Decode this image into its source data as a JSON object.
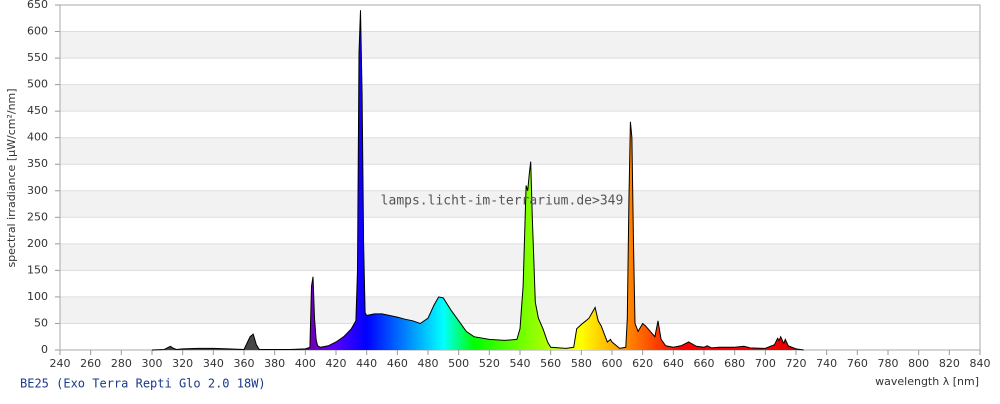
{
  "chart_data": {
    "type": "area",
    "title": "BE25 (Exo Terra Repti Glo 2.0 18W)",
    "watermark": "lamps.licht-im-terrarium.de>349",
    "x_label": "wavelength λ [nm]",
    "y_label": "spectral irradiance [µW/cm²/nm]",
    "xlim": [
      240,
      840
    ],
    "ylim": [
      0,
      650
    ],
    "xticks": [
      240,
      260,
      280,
      300,
      320,
      340,
      360,
      380,
      400,
      420,
      440,
      460,
      480,
      500,
      520,
      540,
      560,
      580,
      600,
      620,
      640,
      660,
      680,
      700,
      720,
      740,
      760,
      780,
      800,
      820,
      840
    ],
    "yticks": [
      0,
      50,
      100,
      150,
      200,
      250,
      300,
      350,
      400,
      450,
      500,
      550,
      600,
      650
    ],
    "grid": true,
    "line_color": "#000000",
    "band_color": "#f2f2f2",
    "x": [
      300,
      308,
      312,
      314,
      316,
      320,
      330,
      340,
      350,
      360,
      364,
      366,
      368,
      370,
      380,
      390,
      400,
      403,
      404,
      405,
      406,
      407,
      408,
      410,
      415,
      420,
      425,
      430,
      433,
      434,
      435,
      436,
      437,
      438,
      439,
      440,
      445,
      450,
      455,
      460,
      465,
      470,
      475,
      480,
      484,
      487,
      490,
      495,
      500,
      505,
      510,
      520,
      530,
      538,
      540,
      542,
      544,
      545,
      546,
      547,
      548,
      550,
      552,
      555,
      558,
      560,
      570,
      575,
      577,
      580,
      583,
      585,
      587,
      589,
      591,
      593,
      595,
      597,
      599,
      600,
      605,
      609,
      610,
      611,
      612,
      613,
      614,
      615,
      617,
      620,
      622,
      625,
      628,
      630,
      632,
      635,
      640,
      645,
      650,
      655,
      660,
      662,
      665,
      670,
      680,
      686,
      690,
      700,
      706,
      708,
      709,
      710,
      712,
      713,
      715,
      720,
      725
    ],
    "values": [
      0,
      1,
      7,
      3,
      1,
      2,
      3,
      3,
      2,
      1,
      25,
      30,
      10,
      1,
      1,
      1,
      2,
      5,
      120,
      138,
      60,
      20,
      8,
      5,
      8,
      15,
      25,
      40,
      55,
      150,
      560,
      640,
      480,
      200,
      70,
      65,
      68,
      68,
      65,
      62,
      58,
      55,
      50,
      60,
      85,
      100,
      98,
      75,
      55,
      35,
      25,
      20,
      18,
      20,
      40,
      120,
      310,
      300,
      330,
      355,
      250,
      90,
      60,
      40,
      15,
      5,
      3,
      5,
      40,
      48,
      55,
      60,
      70,
      80,
      55,
      45,
      30,
      15,
      20,
      15,
      3,
      5,
      60,
      280,
      430,
      400,
      200,
      50,
      35,
      50,
      45,
      35,
      25,
      55,
      20,
      8,
      5,
      8,
      15,
      7,
      5,
      8,
      4,
      5,
      5,
      7,
      4,
      3,
      10,
      22,
      18,
      25,
      12,
      20,
      8,
      2,
      0
    ]
  }
}
